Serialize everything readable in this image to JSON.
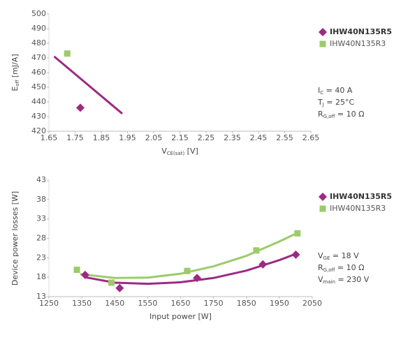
{
  "chart_data": [
    {
      "type": "scatter",
      "x_label": [
        {
          "t": "V"
        },
        {
          "sub": "CE(sat)"
        },
        {
          "t": " [V]"
        }
      ],
      "y_label": [
        {
          "t": "E"
        },
        {
          "sub": "off"
        },
        {
          "t": " [mJ/A]"
        }
      ],
      "xlim": [
        1.65,
        2.65
      ],
      "xticks": [
        1.65,
        1.75,
        1.85,
        1.95,
        2.05,
        2.15,
        2.25,
        2.35,
        2.45,
        2.55,
        2.65
      ],
      "ylim": [
        420,
        500
      ],
      "yticks": [
        420,
        430,
        440,
        450,
        460,
        470,
        480,
        490,
        500
      ],
      "series": [
        {
          "name": "IHW40N135R5",
          "color": "#9c2a83",
          "marker": "diamond",
          "x": [
            1.77
          ],
          "values": [
            436
          ]
        },
        {
          "name": "IHW40N135R3",
          "color": "#9ccb6a",
          "marker": "square",
          "x": [
            1.72
          ],
          "values": [
            473
          ]
        }
      ],
      "trendlines": [
        {
          "color": "#9c2a83",
          "x": [
            1.67,
            1.93
          ],
          "values": [
            471,
            432
          ]
        }
      ],
      "annotations": [
        [
          {
            "t": "I"
          },
          {
            "sub": "C"
          },
          {
            "t": " = 40 A"
          }
        ],
        [
          {
            "t": "T"
          },
          {
            "sub": "J"
          },
          {
            "t": " = 25°C"
          }
        ],
        [
          {
            "t": "R"
          },
          {
            "sub": "G,off"
          },
          {
            "t": " = 10 Ω"
          }
        ]
      ]
    },
    {
      "type": "scatter",
      "x_label": [
        {
          "t": "Input power [W]"
        }
      ],
      "y_label": [
        {
          "t": "Device power losses [W]"
        }
      ],
      "xlim": [
        1250,
        2050
      ],
      "xticks": [
        1250,
        1350,
        1450,
        1550,
        1650,
        1750,
        1850,
        1950,
        2050
      ],
      "ylim": [
        13,
        43
      ],
      "yticks": [
        13,
        18,
        23,
        28,
        33,
        38,
        43
      ],
      "series": [
        {
          "name": "IHW40N135R5",
          "color": "#9c2a83",
          "marker": "diamond",
          "x": [
            1360,
            1465,
            1700,
            1900,
            2000
          ],
          "values": [
            18.6,
            15.2,
            17.8,
            21.3,
            23.8
          ]
        },
        {
          "name": "IHW40N135R3",
          "color": "#9ccb6a",
          "marker": "square",
          "x": [
            1335,
            1440,
            1670,
            1880,
            2005
          ],
          "values": [
            19.9,
            16.6,
            19.6,
            24.9,
            29.3
          ]
        }
      ],
      "trendlines": [
        {
          "color": "#9ccb6a",
          "x": [
            1345,
            1450,
            1550,
            1650,
            1750,
            1850,
            1950,
            2005
          ],
          "values": [
            18.8,
            17.8,
            17.9,
            18.9,
            20.8,
            23.5,
            27.2,
            29.4
          ]
        },
        {
          "color": "#9c2a83",
          "x": [
            1360,
            1450,
            1550,
            1650,
            1750,
            1850,
            1950,
            2000
          ],
          "values": [
            18,
            16.6,
            16.3,
            16.7,
            17.8,
            19.7,
            22.4,
            24.0
          ]
        }
      ],
      "annotations": [
        [
          {
            "t": "V"
          },
          {
            "sub": "GE"
          },
          {
            "t": " = 18 V"
          }
        ],
        [
          {
            "t": "R"
          },
          {
            "sub": "G,off"
          },
          {
            "t": " = 10 Ω"
          }
        ],
        [
          {
            "t": "V"
          },
          {
            "sub": "main"
          },
          {
            "t": " = 230 V"
          }
        ]
      ]
    }
  ]
}
